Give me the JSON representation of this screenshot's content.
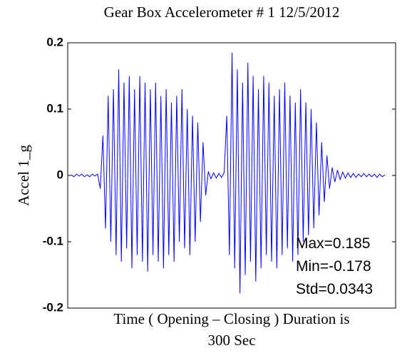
{
  "chart_data": {
    "type": "line",
    "title": "Gear Box Accelerometer # 1   12/5/2012",
    "ylabel": "Accel 1_g",
    "xlabel": [
      "Time ( Opening – Closing ) Duration is",
      "300 Sec"
    ],
    "annotations": [
      "Max=0.185",
      "Min=-0.178",
      "Std=0.0343"
    ],
    "ylim": [
      -0.2,
      0.2
    ],
    "yticks": [
      -0.2,
      -0.1,
      0,
      0.1,
      0.2
    ],
    "color": "#0000ff",
    "values": [
      0.001,
      -0.002,
      0.002,
      -0.001,
      0.002,
      -0.002,
      0.001,
      -0.002,
      0.002,
      -0.001,
      0.002,
      -0.02,
      0.06,
      -0.08,
      0.12,
      -0.1,
      0.13,
      -0.12,
      0.16,
      -0.13,
      0.14,
      -0.11,
      0.15,
      -0.14,
      0.13,
      -0.12,
      0.15,
      -0.13,
      0.14,
      -0.145,
      0.13,
      -0.12,
      0.14,
      -0.13,
      0.12,
      -0.14,
      0.13,
      -0.12,
      0.11,
      -0.13,
      0.12,
      -0.1,
      0.13,
      -0.11,
      0.1,
      -0.12,
      0.09,
      -0.1,
      0.08,
      -0.07,
      0.05,
      -0.03,
      0.006,
      -0.005,
      0.004,
      -0.004,
      0.003,
      -0.003,
      0.004,
      0.09,
      -0.12,
      0.185,
      -0.14,
      0.16,
      -0.178,
      0.14,
      -0.15,
      0.17,
      -0.13,
      0.15,
      -0.16,
      0.13,
      -0.14,
      0.15,
      -0.12,
      0.14,
      -0.13,
      0.12,
      -0.14,
      0.13,
      -0.12,
      0.14,
      -0.11,
      0.12,
      -0.13,
      0.11,
      -0.12,
      0.13,
      -0.1,
      0.11,
      -0.09,
      0.1,
      -0.08,
      0.08,
      -0.06,
      0.05,
      -0.04,
      0.03,
      -0.02,
      0.012,
      -0.01,
      0.008,
      -0.006,
      0.005,
      -0.004,
      0.004,
      -0.003,
      0.003,
      -0.003,
      0.002,
      -0.002,
      0.003,
      -0.002,
      0.002,
      -0.002,
      0.002,
      -0.003,
      0.002,
      -0.002,
      0.001
    ]
  }
}
